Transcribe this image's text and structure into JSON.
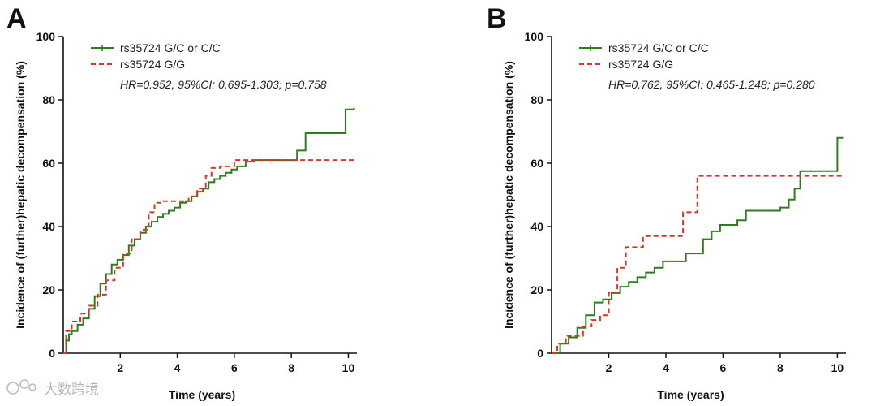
{
  "chart_data": [
    {
      "panel": "A",
      "type": "line",
      "title": "",
      "xlabel": "Time (years)",
      "ylabel": "Incidence of (further)hepatic decompensation (%)",
      "xlim": [
        0,
        10.3
      ],
      "ylim": [
        0,
        100
      ],
      "xticks": [
        2,
        4,
        6,
        8,
        10
      ],
      "yticks": [
        0,
        20,
        40,
        60,
        80,
        100
      ],
      "annotation": "HR=0.952, 95%CI: 0.695-1.303; p=0.758",
      "legend_position": "top-left",
      "series": [
        {
          "name": "rs35724 G/C or C/C",
          "color": "#2e7d1e",
          "style": "solid",
          "x": [
            0,
            0.1,
            0.2,
            0.3,
            0.5,
            0.7,
            0.9,
            1.1,
            1.3,
            1.5,
            1.7,
            1.9,
            2.1,
            2.3,
            2.5,
            2.7,
            2.9,
            3.1,
            3.3,
            3.5,
            3.7,
            3.9,
            4.1,
            4.3,
            4.5,
            4.7,
            4.9,
            5.1,
            5.3,
            5.5,
            5.7,
            5.9,
            6.1,
            6.4,
            6.7,
            7.0,
            7.3,
            7.6,
            7.9,
            8.2,
            8.5,
            8.8,
            9.1,
            9.4,
            9.7,
            9.9,
            10.2
          ],
          "y": [
            0,
            4,
            6,
            7,
            9,
            11,
            14,
            18,
            22,
            25,
            28,
            29.5,
            31,
            34,
            36,
            38,
            40,
            41.5,
            43,
            44,
            45,
            46,
            47.5,
            48,
            49.5,
            51,
            52,
            54,
            55,
            56,
            57,
            58,
            59,
            60.5,
            61,
            61,
            61,
            61,
            61,
            64,
            69.5,
            69.5,
            69.5,
            69.5,
            69.5,
            77,
            77.5
          ]
        },
        {
          "name": "rs35724 G/G",
          "color": "#d8352a",
          "style": "dashed",
          "x": [
            0,
            0.1,
            0.3,
            0.6,
            0.9,
            1.2,
            1.5,
            1.8,
            2.1,
            2.4,
            2.7,
            3.0,
            3.2,
            3.5,
            3.8,
            4.1,
            4.4,
            4.7,
            5.0,
            5.2,
            5.5,
            5.8,
            6.0,
            6.4,
            7.0,
            7.5,
            8.0,
            8.5,
            9.0,
            9.5,
            10.2
          ],
          "y": [
            0,
            7,
            10,
            12.5,
            15,
            18.5,
            23,
            27,
            31.5,
            36,
            39,
            44.5,
            47.5,
            48,
            48,
            48,
            49.5,
            52,
            56,
            58.5,
            59,
            59,
            61,
            61,
            61,
            61,
            61,
            61,
            61,
            61,
            61
          ]
        }
      ]
    },
    {
      "panel": "B",
      "type": "line",
      "title": "",
      "xlabel": "Time (years)",
      "ylabel": "Incidence of (further)hepatic decompensation (%)",
      "xlim": [
        0,
        10.3
      ],
      "ylim": [
        0,
        100
      ],
      "xticks": [
        2,
        4,
        6,
        8,
        10
      ],
      "yticks": [
        0,
        20,
        40,
        60,
        80,
        100
      ],
      "annotation": "HR=0.762, 95%CI: 0.465-1.248; p=0.280",
      "legend_position": "top-left",
      "series": [
        {
          "name": "rs35724 G/C or C/C",
          "color": "#2e7d1e",
          "style": "solid",
          "x": [
            0,
            0.3,
            0.6,
            0.9,
            1.2,
            1.5,
            1.8,
            2.1,
            2.4,
            2.7,
            3.0,
            3.3,
            3.6,
            3.9,
            4.2,
            4.5,
            4.7,
            5.0,
            5.3,
            5.6,
            5.9,
            6.2,
            6.5,
            6.8,
            7.1,
            7.4,
            7.7,
            8.0,
            8.3,
            8.5,
            8.7,
            9.0,
            9.4,
            9.8,
            10.0,
            10.2
          ],
          "y": [
            0,
            3,
            5,
            8,
            12,
            16,
            17,
            19,
            21,
            22.5,
            24,
            25.5,
            27,
            29,
            29,
            29,
            31.5,
            31.5,
            36,
            38.5,
            40.5,
            40.5,
            42,
            45,
            45,
            45,
            45,
            46,
            48.5,
            52,
            57.5,
            57.5,
            57.5,
            57.5,
            68,
            68
          ]
        },
        {
          "name": "rs35724 G/G",
          "color": "#d8352a",
          "style": "dashed",
          "x": [
            0,
            0.2,
            0.5,
            0.8,
            1.1,
            1.4,
            1.7,
            2.0,
            2.3,
            2.6,
            2.9,
            3.2,
            3.6,
            4.0,
            4.4,
            4.6,
            4.9,
            5.1,
            5.4,
            5.8,
            6.2,
            7.0,
            8.0,
            9.0,
            10.2
          ],
          "y": [
            0,
            3,
            5.5,
            5.5,
            8.5,
            10.5,
            12,
            19,
            27,
            33.5,
            33.5,
            37,
            37,
            37,
            37,
            44.5,
            44.5,
            56,
            56,
            56,
            56,
            56,
            56,
            56,
            56
          ]
        }
      ]
    }
  ],
  "watermark": "大数跨境"
}
